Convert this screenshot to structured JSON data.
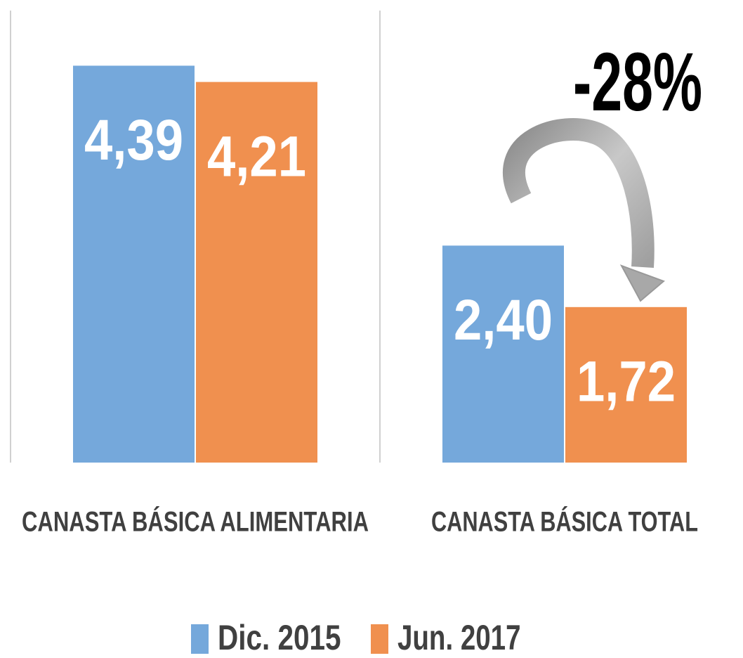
{
  "chart_data": {
    "type": "bar",
    "categories": [
      "CANASTA BÁSICA ALIMENTARIA",
      "CANASTA BÁSICA TOTAL"
    ],
    "series": [
      {
        "name": "Dic. 2015",
        "color": "#75a8db",
        "values": [
          4.39,
          2.4
        ],
        "value_labels": [
          "4,39",
          "2,40"
        ]
      },
      {
        "name": "Jun. 2017",
        "color": "#f0904f",
        "values": [
          4.21,
          1.72
        ],
        "value_labels": [
          "4,21",
          "1,72"
        ]
      }
    ],
    "ylim": [
      0,
      5
    ],
    "annotation": "-28%"
  }
}
